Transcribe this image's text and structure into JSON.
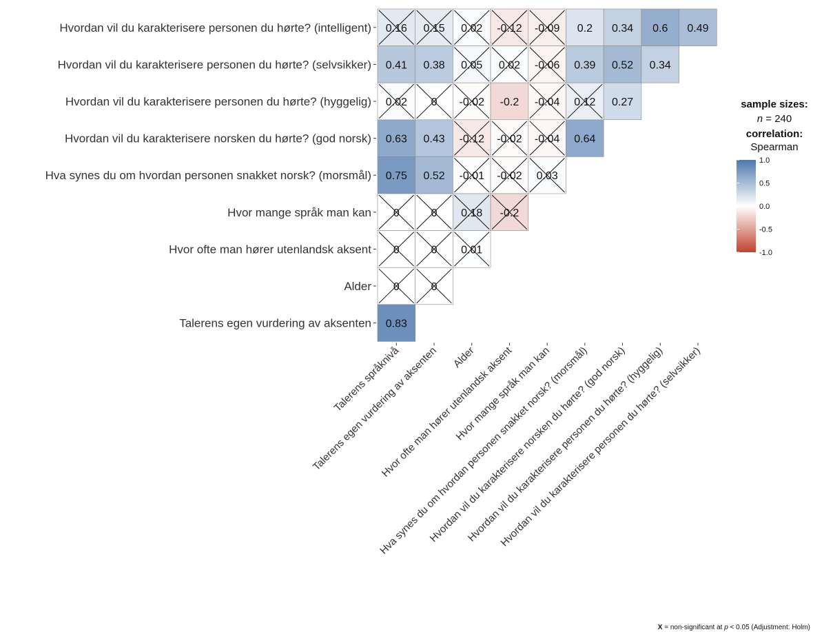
{
  "chart_data": {
    "type": "heatmap",
    "method": "Spearman",
    "row_labels": [
      "Hvordan vil du karakterisere personen du hørte? (intelligent)",
      "Hvordan vil du karakterisere personen du hørte? (selvsikker)",
      "Hvordan vil du karakterisere personen du hørte? (hyggelig)",
      "Hvordan vil du karakterisere norsken du hørte? (god norsk)",
      "Hva synes du om hvordan personen snakket norsk? (morsmål)",
      "Hvor mange språk man kan",
      "Hvor ofte man hører utenlandsk aksent",
      "Alder",
      "Talerens egen vurdering av aksenten"
    ],
    "col_labels": [
      "Talerens språknivå",
      "Talerens egen vurdering av aksenten",
      "Alder",
      "Hvor ofte man hører utenlandsk aksent",
      "Hvor mange språk man kan",
      "Hva synes du om hvordan personen snakket norsk? (morsmål)",
      "Hvordan vil du karakterisere norsken du hørte? (god norsk)",
      "Hvordan vil du karakterisere personen du hørte? (hyggelig)",
      "Hvordan vil du karakterisere personen du hørte? (selvsikker)"
    ],
    "values": [
      [
        0.16,
        0.15,
        0.02,
        -0.12,
        -0.09,
        0.2,
        0.34,
        0.6,
        0.49
      ],
      [
        0.41,
        0.38,
        0.05,
        0.02,
        -0.06,
        0.39,
        0.52,
        0.34
      ],
      [
        0.02,
        0,
        -0.02,
        -0.2,
        -0.04,
        0.12,
        0.27
      ],
      [
        0.63,
        0.43,
        -0.12,
        -0.02,
        -0.04,
        0.64
      ],
      [
        0.75,
        0.52,
        -0.01,
        -0.02,
        0.03
      ],
      [
        0,
        0,
        0.18,
        -0.2
      ],
      [
        0,
        0,
        0.01
      ],
      [
        0,
        0
      ],
      [
        0.83
      ]
    ],
    "nonsignificant": [
      [
        true,
        true,
        true,
        true,
        true,
        false,
        false,
        false,
        false
      ],
      [
        false,
        false,
        true,
        true,
        true,
        false,
        false,
        false
      ],
      [
        true,
        true,
        true,
        false,
        true,
        true,
        false
      ],
      [
        false,
        false,
        true,
        true,
        true,
        false
      ],
      [
        false,
        false,
        true,
        true,
        true
      ],
      [
        true,
        true,
        true,
        true
      ],
      [
        true,
        true,
        true
      ],
      [
        true,
        true
      ],
      [
        false
      ]
    ],
    "display_values": [
      [
        "0.16",
        "0.15",
        "0.02",
        "-0.12",
        "-0.09",
        "0.2",
        "0.34",
        "0.6",
        "0.49"
      ],
      [
        "0.41",
        "0.38",
        "0.05",
        "0.02",
        "-0.06",
        "0.39",
        "0.52",
        "0.34"
      ],
      [
        "0.02",
        "0",
        "-0.02",
        "-0.2",
        "-0.04",
        "0.12",
        "0.27"
      ],
      [
        "0.63",
        "0.43",
        "-0.12",
        "-0.02",
        "-0.04",
        "0.64"
      ],
      [
        "0.75",
        "0.52",
        "-0.01",
        "-0.02",
        "0.03"
      ],
      [
        "0",
        "0",
        "0.18",
        "-0.2"
      ],
      [
        "0",
        "0",
        "0.01"
      ],
      [
        "0",
        "0"
      ],
      [
        "0.83"
      ]
    ],
    "color_scale": {
      "low": "#C1432E",
      "mid": "#FFFFFF",
      "high": "#4F78AD",
      "limits": [
        -1,
        1
      ]
    },
    "legend": {
      "title_sample": "sample sizes:",
      "n_label": "n",
      "n_value": "= 240",
      "title_corr": "correlation:",
      "method_label": "Spearman",
      "ticks": [
        "1.0",
        "0.5",
        "0.0",
        "-0.5",
        "-1.0"
      ],
      "placement": "right"
    },
    "caption": {
      "mark": "X",
      "text": " = non-significant at ",
      "p": "p",
      "text2": " < 0.05 (Adjustment: Holm)"
    }
  }
}
